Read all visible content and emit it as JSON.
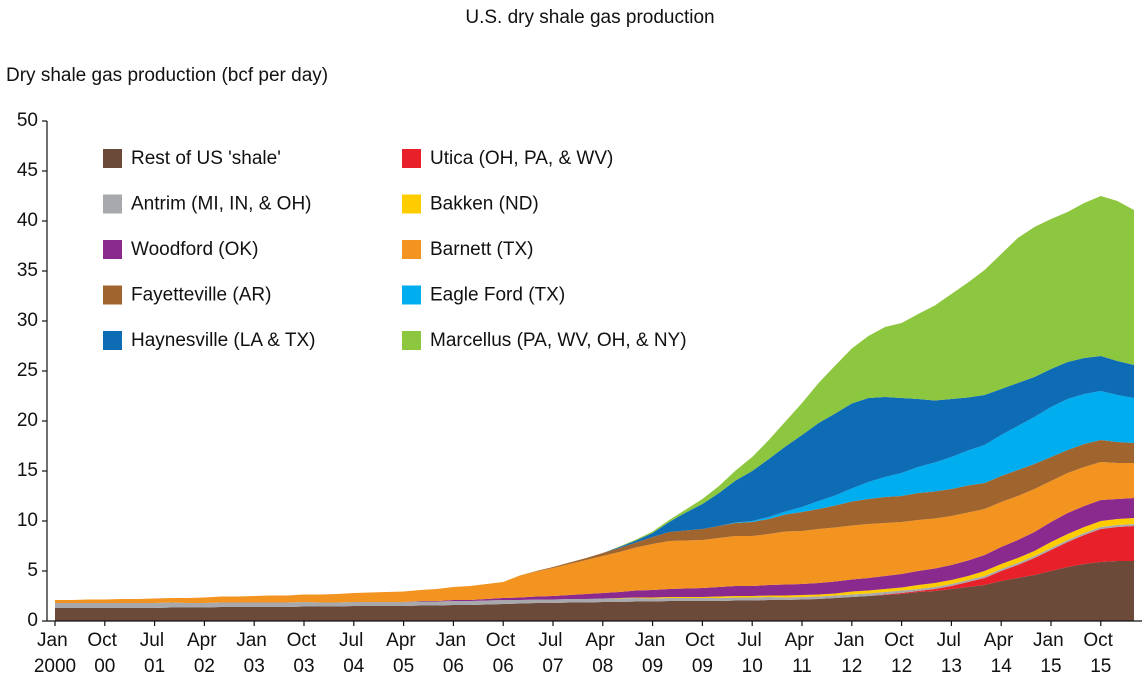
{
  "chart_data": {
    "type": "stacked_area",
    "title": "U.S. dry shale gas production",
    "y_label": "Dry shale gas production (bcf per day)",
    "categories": [
      "Jan 2000",
      null,
      null,
      "Oct 00",
      null,
      null,
      "Jul 01",
      null,
      null,
      "Apr 02",
      null,
      null,
      "Jan 03",
      null,
      null,
      "Oct 03",
      null,
      null,
      "Jul 04",
      null,
      null,
      "Apr 05",
      null,
      null,
      "Jan 06",
      null,
      null,
      "Oct 06",
      null,
      null,
      "Jul 07",
      null,
      null,
      "Apr 08",
      null,
      null,
      "Jan 09",
      null,
      null,
      "Oct 09",
      null,
      null,
      "Jul 10",
      null,
      null,
      "Apr 11",
      null,
      null,
      "Jan 12",
      null,
      null,
      "Oct 12",
      null,
      null,
      "Jul 13",
      null,
      null,
      "Apr 14",
      null,
      null,
      "Jan 15",
      null,
      null,
      "Oct 15",
      null,
      null
    ],
    "ylim": [
      0,
      50
    ],
    "yticks": [
      0,
      5,
      10,
      15,
      20,
      25,
      30,
      35,
      40,
      45,
      50
    ],
    "series": [
      {
        "name": "Rest of US 'shale'",
        "color": "#6b4a3a",
        "values": [
          1.3,
          1.3,
          1.3,
          1.3,
          1.3,
          1.3,
          1.3,
          1.35,
          1.35,
          1.35,
          1.4,
          1.4,
          1.4,
          1.4,
          1.4,
          1.45,
          1.45,
          1.45,
          1.5,
          1.5,
          1.5,
          1.5,
          1.55,
          1.55,
          1.6,
          1.6,
          1.65,
          1.7,
          1.75,
          1.8,
          1.8,
          1.85,
          1.85,
          1.9,
          1.9,
          1.95,
          1.95,
          2.0,
          2.0,
          2.0,
          2.0,
          2.05,
          2.05,
          2.1,
          2.1,
          2.15,
          2.2,
          2.3,
          2.4,
          2.5,
          2.6,
          2.7,
          2.9,
          3.0,
          3.2,
          3.4,
          3.6,
          4.0,
          4.3,
          4.6,
          5.0,
          5.4,
          5.7,
          5.9,
          6.0,
          6.0
        ]
      },
      {
        "name": "Utica (OH, PA, & WV)",
        "color": "#e8202a",
        "values": [
          0,
          0,
          0,
          0,
          0,
          0,
          0,
          0,
          0,
          0,
          0,
          0,
          0,
          0,
          0,
          0,
          0,
          0,
          0,
          0,
          0,
          0,
          0,
          0,
          0,
          0,
          0,
          0,
          0,
          0,
          0,
          0,
          0,
          0,
          0,
          0,
          0,
          0,
          0,
          0,
          0,
          0,
          0,
          0,
          0,
          0,
          0,
          0,
          0,
          0,
          0.05,
          0.1,
          0.1,
          0.2,
          0.3,
          0.5,
          0.7,
          1.0,
          1.3,
          1.7,
          2.1,
          2.5,
          2.9,
          3.3,
          3.4,
          3.5
        ]
      },
      {
        "name": "Antrim (MI, IN, & OH)",
        "color": "#a7a9ac",
        "values": [
          0.5,
          0.5,
          0.5,
          0.5,
          0.5,
          0.5,
          0.5,
          0.5,
          0.45,
          0.45,
          0.45,
          0.45,
          0.45,
          0.45,
          0.45,
          0.45,
          0.4,
          0.4,
          0.4,
          0.4,
          0.4,
          0.4,
          0.4,
          0.4,
          0.4,
          0.4,
          0.4,
          0.4,
          0.35,
          0.35,
          0.35,
          0.35,
          0.35,
          0.35,
          0.35,
          0.35,
          0.3,
          0.3,
          0.3,
          0.3,
          0.3,
          0.3,
          0.3,
          0.3,
          0.25,
          0.25,
          0.25,
          0.25,
          0.25,
          0.25,
          0.25,
          0.25,
          0.2,
          0.2,
          0.2,
          0.2,
          0.2,
          0.2,
          0.2,
          0.2,
          0.2,
          0.2,
          0.2,
          0.2,
          0.2,
          0.2
        ]
      },
      {
        "name": "Bakken (ND)",
        "color": "#ffcc00",
        "values": [
          0,
          0,
          0,
          0,
          0,
          0,
          0,
          0,
          0,
          0,
          0,
          0,
          0,
          0,
          0,
          0,
          0,
          0,
          0,
          0,
          0,
          0,
          0,
          0,
          0,
          0,
          0,
          0,
          0,
          0,
          0,
          0,
          0,
          0,
          0.05,
          0.05,
          0.1,
          0.1,
          0.1,
          0.1,
          0.15,
          0.15,
          0.15,
          0.15,
          0.2,
          0.2,
          0.2,
          0.2,
          0.3,
          0.3,
          0.3,
          0.3,
          0.4,
          0.4,
          0.4,
          0.4,
          0.5,
          0.5,
          0.5,
          0.5,
          0.6,
          0.6,
          0.6,
          0.6,
          0.6,
          0.6
        ]
      },
      {
        "name": "Woodford (OK)",
        "color": "#8b2a8e",
        "values": [
          0,
          0,
          0,
          0,
          0,
          0,
          0,
          0,
          0,
          0,
          0,
          0,
          0,
          0,
          0,
          0,
          0,
          0,
          0,
          0,
          0,
          0,
          0.05,
          0.05,
          0.1,
          0.1,
          0.15,
          0.2,
          0.25,
          0.3,
          0.35,
          0.4,
          0.5,
          0.55,
          0.6,
          0.7,
          0.75,
          0.8,
          0.85,
          0.9,
          0.95,
          1.0,
          1.0,
          1.05,
          1.1,
          1.1,
          1.15,
          1.2,
          1.2,
          1.25,
          1.3,
          1.35,
          1.4,
          1.45,
          1.5,
          1.55,
          1.6,
          1.7,
          1.8,
          1.9,
          2.0,
          2.1,
          2.1,
          2.1,
          2.0,
          2.0
        ]
      },
      {
        "name": "Barnett (TX)",
        "color": "#f39320",
        "values": [
          0.3,
          0.3,
          0.35,
          0.35,
          0.4,
          0.4,
          0.45,
          0.45,
          0.5,
          0.55,
          0.6,
          0.6,
          0.65,
          0.7,
          0.7,
          0.75,
          0.8,
          0.85,
          0.9,
          0.95,
          1.0,
          1.05,
          1.1,
          1.2,
          1.3,
          1.4,
          1.5,
          1.6,
          2.2,
          2.5,
          2.8,
          3.1,
          3.4,
          3.7,
          4.0,
          4.3,
          4.6,
          4.8,
          4.8,
          4.8,
          4.9,
          5.0,
          5.0,
          5.1,
          5.3,
          5.3,
          5.4,
          5.4,
          5.4,
          5.4,
          5.3,
          5.2,
          5.1,
          5.0,
          4.9,
          4.8,
          4.6,
          4.5,
          4.4,
          4.3,
          4.1,
          4.0,
          3.9,
          3.8,
          3.6,
          3.5
        ]
      },
      {
        "name": "Fayetteville (AR)",
        "color": "#a0652f",
        "values": [
          0,
          0,
          0,
          0,
          0,
          0,
          0,
          0,
          0,
          0,
          0,
          0,
          0,
          0,
          0,
          0,
          0,
          0,
          0,
          0,
          0,
          0,
          0,
          0,
          0,
          0,
          0,
          0,
          0,
          0.05,
          0.1,
          0.15,
          0.2,
          0.3,
          0.4,
          0.5,
          0.7,
          0.9,
          1.0,
          1.1,
          1.2,
          1.3,
          1.4,
          1.5,
          1.7,
          1.9,
          2.0,
          2.2,
          2.4,
          2.5,
          2.6,
          2.6,
          2.7,
          2.7,
          2.7,
          2.7,
          2.6,
          2.6,
          2.6,
          2.5,
          2.4,
          2.3,
          2.3,
          2.2,
          2.1,
          2.0
        ]
      },
      {
        "name": "Eagle Ford (TX)",
        "color": "#00aeef",
        "values": [
          0,
          0,
          0,
          0,
          0,
          0,
          0,
          0,
          0,
          0,
          0,
          0,
          0,
          0,
          0,
          0,
          0,
          0,
          0,
          0,
          0,
          0,
          0,
          0,
          0,
          0,
          0,
          0,
          0,
          0,
          0,
          0,
          0,
          0,
          0,
          0,
          0,
          0,
          0,
          0,
          0,
          0.05,
          0.1,
          0.2,
          0.3,
          0.5,
          0.8,
          1.0,
          1.3,
          1.7,
          2.0,
          2.3,
          2.6,
          2.9,
          3.2,
          3.5,
          3.8,
          4.1,
          4.4,
          4.7,
          5.0,
          5.1,
          5.0,
          4.9,
          4.7,
          4.5
        ]
      },
      {
        "name": "Haynesville (LA & TX)",
        "color": "#0e6cb5",
        "values": [
          0,
          0,
          0,
          0,
          0,
          0,
          0,
          0,
          0,
          0,
          0,
          0,
          0,
          0,
          0,
          0,
          0,
          0,
          0,
          0,
          0,
          0,
          0,
          0,
          0,
          0,
          0,
          0,
          0,
          0,
          0,
          0,
          0,
          0,
          0.1,
          0.2,
          0.4,
          1.0,
          1.8,
          2.5,
          3.3,
          4.2,
          5.0,
          5.8,
          6.5,
          7.2,
          7.8,
          8.2,
          8.5,
          8.4,
          8.0,
          7.5,
          6.8,
          6.2,
          5.8,
          5.3,
          5.0,
          4.6,
          4.3,
          4.0,
          3.8,
          3.7,
          3.6,
          3.5,
          3.4,
          3.3
        ]
      },
      {
        "name": "Marcellus (PA, WV, OH, & NY)",
        "color": "#8dc63f",
        "values": [
          0,
          0,
          0,
          0,
          0,
          0,
          0,
          0,
          0,
          0,
          0,
          0,
          0,
          0,
          0,
          0,
          0,
          0,
          0,
          0,
          0,
          0,
          0,
          0,
          0,
          0,
          0,
          0,
          0,
          0,
          0,
          0,
          0,
          0,
          0.05,
          0.1,
          0.15,
          0.2,
          0.3,
          0.5,
          0.7,
          1.0,
          1.4,
          1.9,
          2.5,
          3.2,
          4.0,
          4.8,
          5.5,
          6.2,
          7.0,
          7.5,
          8.5,
          9.5,
          10.5,
          11.5,
          12.5,
          13.5,
          14.5,
          15.0,
          15.0,
          15.0,
          15.5,
          16.0,
          16.0,
          15.5
        ]
      }
    ]
  }
}
